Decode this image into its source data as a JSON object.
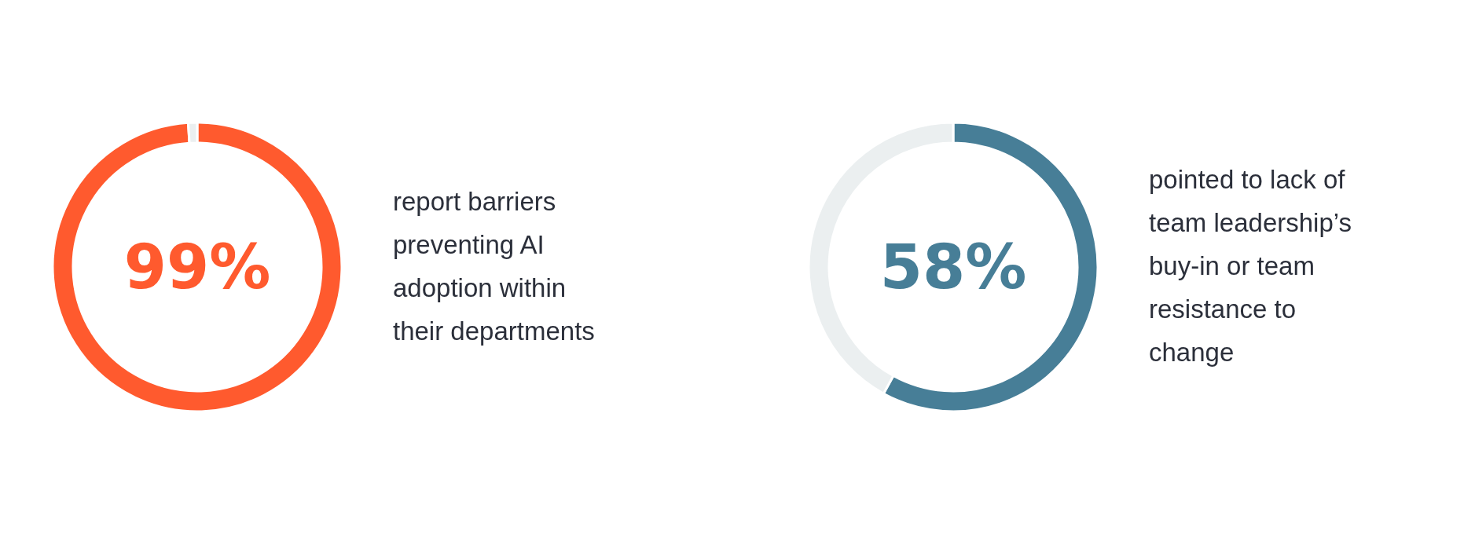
{
  "chart_data": [
    {
      "type": "donut",
      "categories": [
        null,
        null
      ],
      "values": [
        99,
        1
      ],
      "colors": [
        "#ff5a2e",
        "#ebeff0"
      ],
      "value_labels": [
        "99%",
        null
      ],
      "annotations": [
        "report barriers preventing AI adoption within their departments"
      ]
    },
    {
      "type": "donut",
      "categories": [
        null,
        null
      ],
      "values": [
        58,
        42
      ],
      "colors": [
        "#477e97",
        "#ebeff0"
      ],
      "value_labels": [
        "58%",
        null
      ],
      "annotations": [
        "pointed to lack of team leadership’s buy-in or team resistance to change"
      ]
    }
  ]
}
